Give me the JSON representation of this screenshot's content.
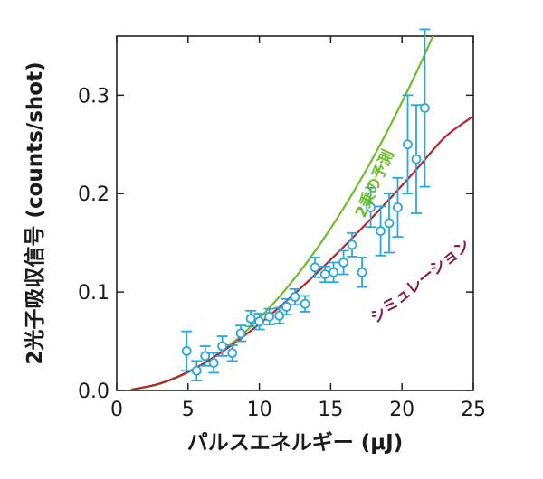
{
  "chart_data": {
    "type": "scatter",
    "xlabel": "パルスエネルギー (μJ)",
    "ylabel": "2光子吸収信号 (counts/shot)",
    "xlim": [
      0,
      25
    ],
    "ylim": [
      0,
      0.36
    ],
    "x_ticks": [
      "0",
      "5",
      "10",
      "15",
      "20",
      "25"
    ],
    "y_ticks": [
      "0.0",
      "0.1",
      "0.2",
      "0.3"
    ],
    "x_tick_values": [
      0,
      5,
      10,
      15,
      20,
      25
    ],
    "y_tick_values": [
      0.0,
      0.1,
      0.2,
      0.3
    ],
    "grid": false,
    "series": [
      {
        "kind": "points-with-error",
        "color": "#2aa6dc",
        "points": [
          {
            "x": 4.9,
            "y": 0.04,
            "err": 0.02
          },
          {
            "x": 5.6,
            "y": 0.02,
            "err": 0.01
          },
          {
            "x": 6.2,
            "y": 0.035,
            "err": 0.01
          },
          {
            "x": 6.8,
            "y": 0.028,
            "err": 0.01
          },
          {
            "x": 7.4,
            "y": 0.045,
            "err": 0.01
          },
          {
            "x": 8.1,
            "y": 0.038,
            "err": 0.008
          },
          {
            "x": 8.7,
            "y": 0.058,
            "err": 0.008
          },
          {
            "x": 9.4,
            "y": 0.073,
            "err": 0.008
          },
          {
            "x": 10.0,
            "y": 0.07,
            "err": 0.008
          },
          {
            "x": 10.7,
            "y": 0.075,
            "err": 0.008
          },
          {
            "x": 11.4,
            "y": 0.076,
            "err": 0.008
          },
          {
            "x": 11.9,
            "y": 0.085,
            "err": 0.008
          },
          {
            "x": 12.5,
            "y": 0.095,
            "err": 0.008
          },
          {
            "x": 13.2,
            "y": 0.088,
            "err": 0.008
          },
          {
            "x": 13.9,
            "y": 0.125,
            "err": 0.01
          },
          {
            "x": 14.6,
            "y": 0.118,
            "err": 0.008
          },
          {
            "x": 15.2,
            "y": 0.12,
            "err": 0.01
          },
          {
            "x": 15.9,
            "y": 0.13,
            "err": 0.012
          },
          {
            "x": 16.5,
            "y": 0.148,
            "err": 0.012
          },
          {
            "x": 17.2,
            "y": 0.12,
            "err": 0.015
          },
          {
            "x": 17.8,
            "y": 0.186,
            "err": 0.02
          },
          {
            "x": 18.5,
            "y": 0.162,
            "err": 0.025
          },
          {
            "x": 19.1,
            "y": 0.17,
            "err": 0.03
          },
          {
            "x": 19.7,
            "y": 0.186,
            "err": 0.03
          },
          {
            "x": 20.4,
            "y": 0.25,
            "err": 0.05
          },
          {
            "x": 21.0,
            "y": 0.235,
            "err": 0.055
          },
          {
            "x": 21.6,
            "y": 0.287,
            "err": 0.08
          }
        ]
      },
      {
        "kind": "curve",
        "color": "#6bbf2a",
        "points": [
          [
            1,
            0.0007
          ],
          [
            3,
            0.0066
          ],
          [
            5,
            0.0183
          ],
          [
            7,
            0.0359
          ],
          [
            9,
            0.0593
          ],
          [
            11,
            0.0886
          ],
          [
            13,
            0.1237
          ],
          [
            15,
            0.1647
          ],
          [
            17,
            0.2116
          ],
          [
            19,
            0.2643
          ],
          [
            21,
            0.3229
          ],
          [
            22.6,
            0.374
          ]
        ]
      },
      {
        "kind": "curve",
        "color": "#b5262a",
        "points": [
          [
            1,
            0.0008
          ],
          [
            3,
            0.0069
          ],
          [
            5,
            0.0188
          ],
          [
            7,
            0.0355
          ],
          [
            9,
            0.0561
          ],
          [
            11,
            0.0795
          ],
          [
            13,
            0.1053
          ],
          [
            15,
            0.1329
          ],
          [
            17,
            0.162
          ],
          [
            19,
            0.1925
          ],
          [
            21,
            0.2243
          ],
          [
            23,
            0.2572
          ],
          [
            25,
            0.2787
          ]
        ]
      }
    ],
    "annotations": [
      {
        "text": "2乗の予測",
        "color": "#6bbf2a",
        "x": 18.4,
        "y": 0.208,
        "angle": -66
      },
      {
        "text": "シミュレーション",
        "color": "#8a1a4a",
        "x": 21.5,
        "y": 0.107,
        "angle": -39
      }
    ]
  }
}
